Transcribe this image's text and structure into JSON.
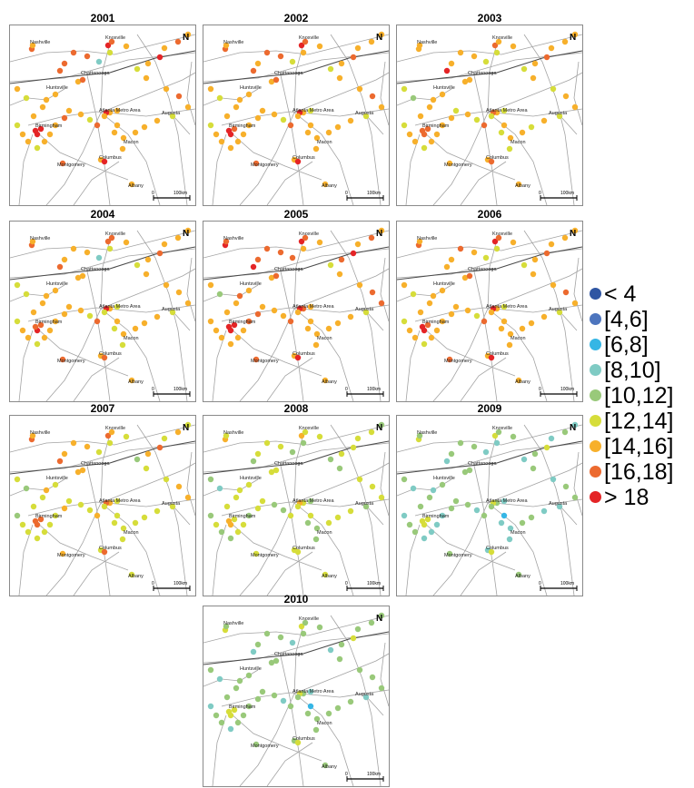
{
  "map_labels": {
    "nashville": "Nashville",
    "knoxville": "Knoxville",
    "chattanooga": "Chattanooga",
    "huntsville": "Huntsville",
    "atlanta": "Atlanta Metro Area",
    "birmingham": "Birmingham",
    "augusta": "Augusta",
    "macon": "Macon",
    "montgomery": "Montgomery",
    "columbus": "Columbus",
    "albany": "Albany",
    "north_arrow": "N",
    "scale_zero": "0",
    "scale_distance": "100km"
  },
  "legend": [
    {
      "label": "< 4",
      "color": "#2f56a3"
    },
    {
      "label": "[4,6]",
      "color": "#4d75be"
    },
    {
      "label": "[6,8]",
      "color": "#35b6e5"
    },
    {
      "label": "[8,10]",
      "color": "#7fcbc4"
    },
    {
      "label": "[10,12]",
      "color": "#99c97a"
    },
    {
      "label": "[12,14]",
      "color": "#d6dd3a"
    },
    {
      "label": "[14,16]",
      "color": "#f7b02b"
    },
    {
      "label": "[16,18]",
      "color": "#ec6a2f"
    },
    {
      "label": "> 18",
      "color": "#e42426"
    }
  ],
  "panels": [
    {
      "year": "2001",
      "levels": [
        7,
        6,
        8,
        7,
        6,
        5,
        6,
        7,
        6,
        8,
        8,
        8,
        8,
        6,
        6,
        8,
        7,
        6,
        6,
        6,
        6,
        7,
        6,
        8,
        6,
        5,
        6,
        6,
        7,
        6,
        5,
        6,
        6,
        6,
        6,
        6,
        6,
        7,
        5,
        6,
        6,
        7,
        6,
        6,
        6,
        5,
        6,
        6,
        5,
        6,
        6,
        5,
        6,
        6,
        6,
        7,
        7,
        7,
        7,
        3
      ]
    },
    {
      "year": "2002",
      "levels": [
        7,
        6,
        8,
        7,
        6,
        6,
        6,
        7,
        6,
        8,
        8,
        7,
        8,
        6,
        6,
        8,
        7,
        6,
        6,
        5,
        6,
        6,
        6,
        7,
        6,
        5,
        6,
        6,
        7,
        6,
        5,
        6,
        6,
        6,
        6,
        6,
        6,
        7,
        5,
        6,
        6,
        6,
        6,
        6,
        6,
        6,
        6,
        6,
        5,
        6,
        6,
        5,
        6,
        6,
        6,
        7,
        6,
        7,
        7,
        5
      ]
    },
    {
      "year": "2003",
      "levels": [
        6,
        6,
        7,
        6,
        6,
        5,
        6,
        6,
        6,
        7,
        7,
        7,
        7,
        5,
        6,
        7,
        6,
        6,
        5,
        5,
        6,
        6,
        6,
        7,
        6,
        5,
        6,
        5,
        6,
        6,
        5,
        6,
        5,
        6,
        6,
        5,
        6,
        7,
        5,
        6,
        5,
        6,
        6,
        6,
        6,
        5,
        6,
        6,
        5,
        6,
        6,
        4,
        5,
        6,
        6,
        8,
        6,
        6,
        6,
        5
      ]
    },
    {
      "year": "2004",
      "levels": [
        7,
        6,
        7,
        7,
        6,
        5,
        6,
        6,
        6,
        8,
        8,
        7,
        7,
        5,
        6,
        7,
        7,
        6,
        5,
        5,
        6,
        6,
        6,
        7,
        6,
        5,
        6,
        6,
        6,
        6,
        5,
        6,
        6,
        6,
        6,
        5,
        6,
        7,
        5,
        6,
        6,
        6,
        6,
        6,
        6,
        5,
        6,
        6,
        5,
        6,
        6,
        5,
        5,
        6,
        6,
        7,
        6,
        6,
        6,
        3
      ]
    },
    {
      "year": "2005",
      "levels": [
        8,
        7,
        8,
        7,
        6,
        6,
        6,
        7,
        7,
        8,
        8,
        8,
        8,
        6,
        6,
        8,
        7,
        6,
        6,
        6,
        6,
        7,
        6,
        8,
        7,
        5,
        6,
        6,
        7,
        7,
        5,
        6,
        6,
        6,
        6,
        6,
        6,
        7,
        6,
        6,
        6,
        7,
        7,
        6,
        6,
        6,
        6,
        6,
        6,
        6,
        6,
        4,
        6,
        7,
        6,
        8,
        7,
        7,
        7,
        7
      ]
    },
    {
      "year": "2006",
      "levels": [
        7,
        6,
        8,
        7,
        6,
        5,
        6,
        7,
        6,
        8,
        8,
        7,
        8,
        6,
        6,
        8,
        7,
        6,
        6,
        5,
        6,
        6,
        6,
        7,
        6,
        5,
        6,
        6,
        7,
        6,
        5,
        6,
        6,
        6,
        6,
        6,
        6,
        7,
        5,
        6,
        6,
        6,
        6,
        6,
        6,
        5,
        6,
        6,
        5,
        6,
        6,
        5,
        6,
        6,
        6,
        6,
        6,
        7,
        6,
        5
      ]
    },
    {
      "year": "2007",
      "levels": [
        7,
        6,
        7,
        6,
        5,
        5,
        6,
        6,
        6,
        7,
        7,
        7,
        7,
        5,
        5,
        7,
        6,
        5,
        5,
        5,
        5,
        6,
        5,
        7,
        6,
        4,
        5,
        5,
        6,
        6,
        5,
        5,
        5,
        5,
        5,
        5,
        5,
        6,
        5,
        5,
        5,
        6,
        5,
        5,
        5,
        5,
        5,
        5,
        4,
        5,
        5,
        4,
        5,
        6,
        5,
        7,
        6,
        6,
        6,
        5
      ]
    },
    {
      "year": "2008",
      "levels": [
        6,
        5,
        6,
        5,
        5,
        4,
        5,
        5,
        5,
        6,
        6,
        5,
        6,
        4,
        5,
        5,
        5,
        5,
        5,
        4,
        4,
        5,
        5,
        5,
        5,
        4,
        4,
        5,
        5,
        5,
        4,
        5,
        5,
        5,
        4,
        4,
        5,
        5,
        4,
        4,
        5,
        5,
        4,
        5,
        5,
        4,
        4,
        5,
        4,
        5,
        5,
        3,
        4,
        5,
        5,
        4,
        5,
        5,
        5,
        4
      ]
    },
    {
      "year": "2009",
      "levels": [
        5,
        4,
        5,
        4,
        4,
        3,
        4,
        4,
        4,
        5,
        5,
        5,
        5,
        3,
        3,
        5,
        4,
        4,
        4,
        3,
        3,
        4,
        3,
        5,
        4,
        3,
        4,
        3,
        4,
        4,
        3,
        3,
        4,
        4,
        3,
        3,
        2,
        4,
        3,
        4,
        4,
        4,
        3,
        3,
        3,
        3,
        4,
        4,
        3,
        4,
        4,
        3,
        4,
        3,
        4,
        3,
        4,
        4,
        4,
        3
      ]
    },
    {
      "year": "2010",
      "levels": [
        5,
        4,
        5,
        4,
        4,
        4,
        4,
        4,
        4,
        5,
        5,
        5,
        5,
        4,
        4,
        5,
        4,
        4,
        4,
        3,
        4,
        4,
        4,
        5,
        4,
        3,
        4,
        4,
        4,
        4,
        3,
        4,
        4,
        4,
        4,
        4,
        2,
        4,
        3,
        4,
        4,
        4,
        4,
        4,
        4,
        3,
        4,
        4,
        3,
        4,
        4,
        3,
        4,
        4,
        4,
        3,
        4,
        4,
        4,
        3
      ]
    }
  ]
}
